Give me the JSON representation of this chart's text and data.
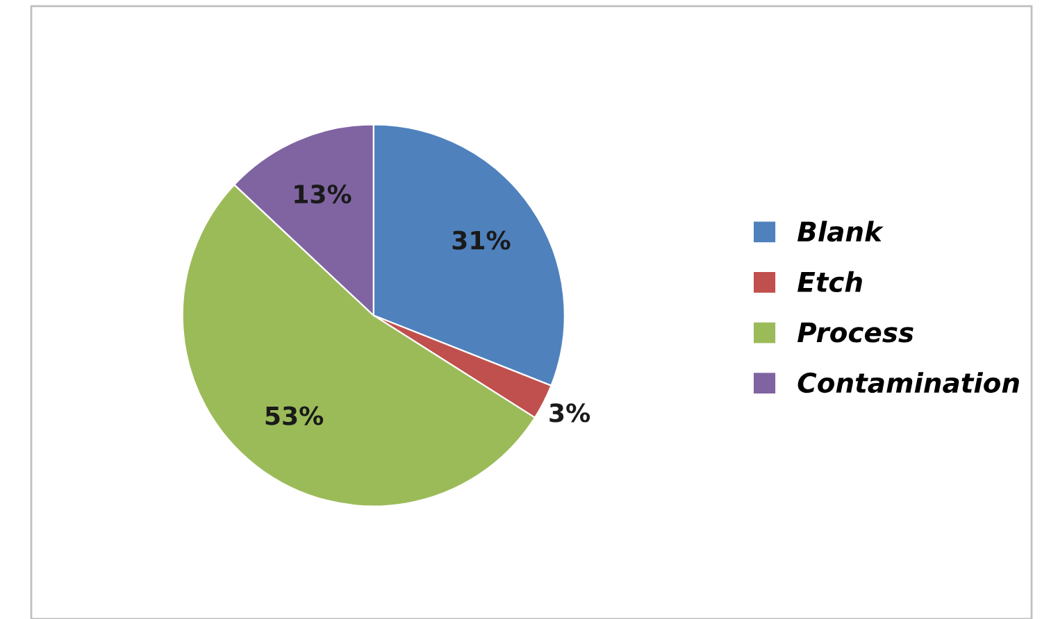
{
  "chart_data": {
    "type": "pie",
    "categories": [
      "Blank",
      "Etch",
      "Process",
      "Contamination"
    ],
    "values": [
      31,
      3,
      53,
      13
    ],
    "colors": [
      "#4f81bd",
      "#c0504d",
      "#9bbb59",
      "#8064a2"
    ],
    "value_labels": [
      "31%",
      "3%",
      "53%",
      "13%"
    ],
    "legend": "right"
  }
}
